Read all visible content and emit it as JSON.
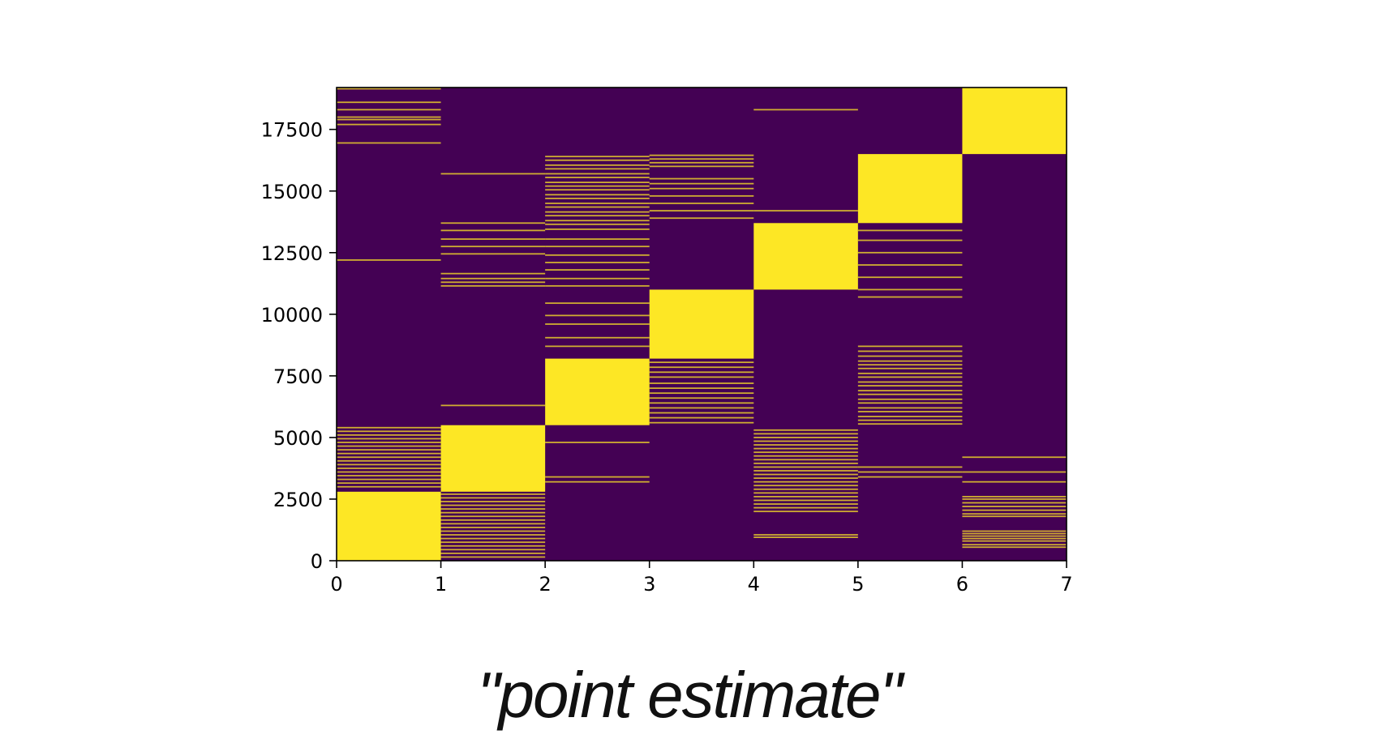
{
  "caption": "\"point estimate\"",
  "colors": {
    "background": "#440154",
    "stripe": "#fde725",
    "axis": "#000000"
  },
  "chart_data": {
    "type": "heatmap",
    "title": "",
    "xlabel": "",
    "ylabel": "",
    "xlim": [
      0,
      7
    ],
    "ylim": [
      0,
      19200
    ],
    "xticks": [
      0,
      1,
      2,
      3,
      4,
      5,
      6,
      7
    ],
    "yticks": [
      0,
      2500,
      5000,
      7500,
      10000,
      12500,
      15000,
      17500
    ],
    "colormap": "viridis",
    "columns": [
      {
        "x": 0,
        "solid_blocks": [
          [
            0,
            2800
          ]
        ],
        "stripe_lines": [
          19150,
          18600,
          18300,
          18000,
          17900,
          17700,
          16950,
          12200,
          5400,
          5250,
          5100,
          4950,
          4800,
          4650,
          4500,
          4350,
          4200,
          4050,
          3900,
          3750,
          3600,
          3450,
          3300,
          3150,
          3000
        ]
      },
      {
        "x": 1,
        "solid_blocks": [
          [
            2800,
            5500
          ]
        ],
        "stripe_lines": [
          15700,
          13700,
          13400,
          13050,
          12750,
          12450,
          11650,
          11450,
          11300,
          11150,
          6300,
          2700,
          2550,
          2400,
          2250,
          2100,
          1950,
          1800,
          1650,
          1500,
          1350,
          1200,
          1050,
          900,
          750,
          600,
          450,
          300,
          150
        ]
      },
      {
        "x": 2,
        "solid_blocks": [
          [
            5500,
            8200
          ]
        ],
        "stripe_lines": [
          16400,
          16250,
          16050,
          15900,
          15700,
          15550,
          15350,
          15200,
          15050,
          14850,
          14700,
          14500,
          14350,
          14150,
          14000,
          13800,
          13650,
          13450,
          13050,
          12750,
          12400,
          12100,
          11800,
          11450,
          11150,
          10450,
          9950,
          9600,
          9050,
          8700,
          4800,
          3400,
          3200
        ]
      },
      {
        "x": 3,
        "solid_blocks": [
          [
            8200,
            11000
          ]
        ],
        "stripe_lines": [
          16450,
          16300,
          16150,
          16000,
          15500,
          15300,
          15100,
          14800,
          14500,
          14200,
          13900,
          8050,
          7850,
          7650,
          7450,
          7200,
          7000,
          6800,
          6600,
          6400,
          6200,
          6000,
          5800,
          5600
        ]
      },
      {
        "x": 4,
        "solid_blocks": [
          [
            11000,
            13700
          ]
        ],
        "stripe_lines": [
          18300,
          14200,
          5300,
          5150,
          5000,
          4850,
          4700,
          4550,
          4400,
          4250,
          4100,
          3950,
          3800,
          3650,
          3500,
          3350,
          3200,
          3050,
          2900,
          2750,
          2600,
          2450,
          2300,
          2150,
          2000,
          1050,
          950
        ]
      },
      {
        "x": 5,
        "solid_blocks": [
          [
            13700,
            16500
          ]
        ],
        "stripe_lines": [
          13400,
          13000,
          12500,
          12000,
          11500,
          11000,
          10700,
          8700,
          8500,
          8300,
          8100,
          7950,
          7800,
          7600,
          7450,
          7250,
          7100,
          6900,
          6750,
          6550,
          6400,
          6200,
          6050,
          5850,
          5700,
          5550,
          3800,
          3600,
          3400
        ]
      },
      {
        "x": 6,
        "solid_blocks": [
          [
            16500,
            19200
          ]
        ],
        "stripe_lines": [
          4200,
          3600,
          3200,
          2600,
          2500,
          2350,
          2200,
          2050,
          1900,
          1800,
          1200,
          1100,
          1000,
          900,
          800,
          650,
          550
        ]
      }
    ]
  }
}
